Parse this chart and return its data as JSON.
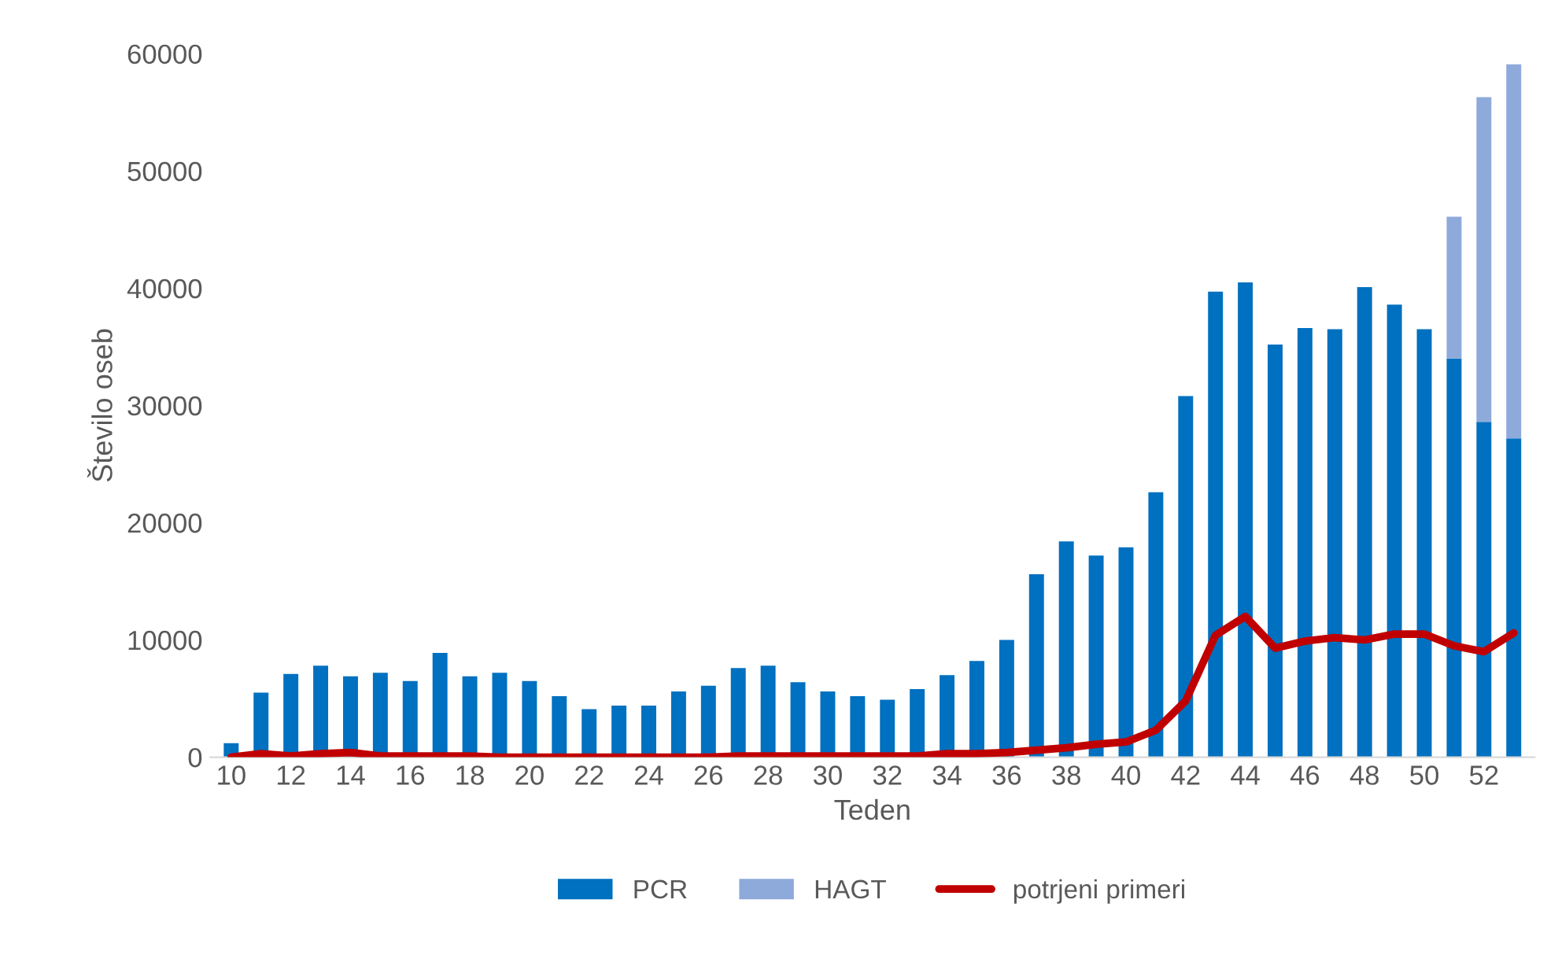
{
  "chart_data": {
    "type": "bar",
    "stacked": true,
    "xlabel": "Teden",
    "ylabel": "Število oseb",
    "categories": [
      "10",
      null,
      "12",
      null,
      "14",
      null,
      "16",
      null,
      "18",
      null,
      "20",
      null,
      "22",
      null,
      "24",
      null,
      "26",
      null,
      "28",
      null,
      "30",
      null,
      "32",
      null,
      "34",
      null,
      "36",
      null,
      "38",
      null,
      "40",
      null,
      "42",
      null,
      "44",
      null,
      "46",
      null,
      "48",
      null,
      "50",
      null,
      "52",
      null
    ],
    "series": [
      {
        "name": "PCR",
        "color": "#0070c0",
        "values": [
          1200,
          5500,
          7100,
          7800,
          6900,
          7200,
          6500,
          8900,
          6900,
          7200,
          6500,
          5200,
          4100,
          4400,
          4400,
          5600,
          6100,
          7600,
          7800,
          6400,
          5600,
          5200,
          4900,
          5800,
          7000,
          8200,
          10000,
          15600,
          18400,
          17200,
          17900,
          22600,
          30800,
          39700,
          40500,
          35200,
          36600,
          36500,
          40100,
          38600,
          36500,
          34000,
          28600,
          27200
        ]
      },
      {
        "name": "HAGT",
        "color": "#8eaadb",
        "values": [
          null,
          null,
          null,
          null,
          null,
          null,
          null,
          null,
          null,
          null,
          null,
          null,
          null,
          null,
          null,
          null,
          null,
          null,
          null,
          null,
          null,
          null,
          null,
          null,
          null,
          null,
          null,
          null,
          null,
          null,
          null,
          null,
          null,
          null,
          null,
          null,
          null,
          null,
          null,
          null,
          null,
          12100,
          27700,
          31900
        ]
      },
      {
        "name": "potrjeni primeri",
        "type": "line",
        "color": "#c00000",
        "values": [
          0,
          300,
          100,
          300,
          400,
          100,
          100,
          100,
          100,
          0,
          0,
          0,
          0,
          0,
          0,
          0,
          0,
          100,
          100,
          100,
          100,
          100,
          100,
          100,
          300,
          300,
          400,
          600,
          800,
          1100,
          1300,
          2300,
          4800,
          10400,
          12000,
          9300,
          9900,
          10200,
          10000,
          10500,
          10500,
          9500,
          9000,
          10600
        ]
      }
    ],
    "ylim": [
      0,
      60000
    ],
    "yticks": [
      0,
      10000,
      20000,
      30000,
      40000,
      50000,
      60000
    ],
    "grid": false,
    "legend": "bottom"
  }
}
